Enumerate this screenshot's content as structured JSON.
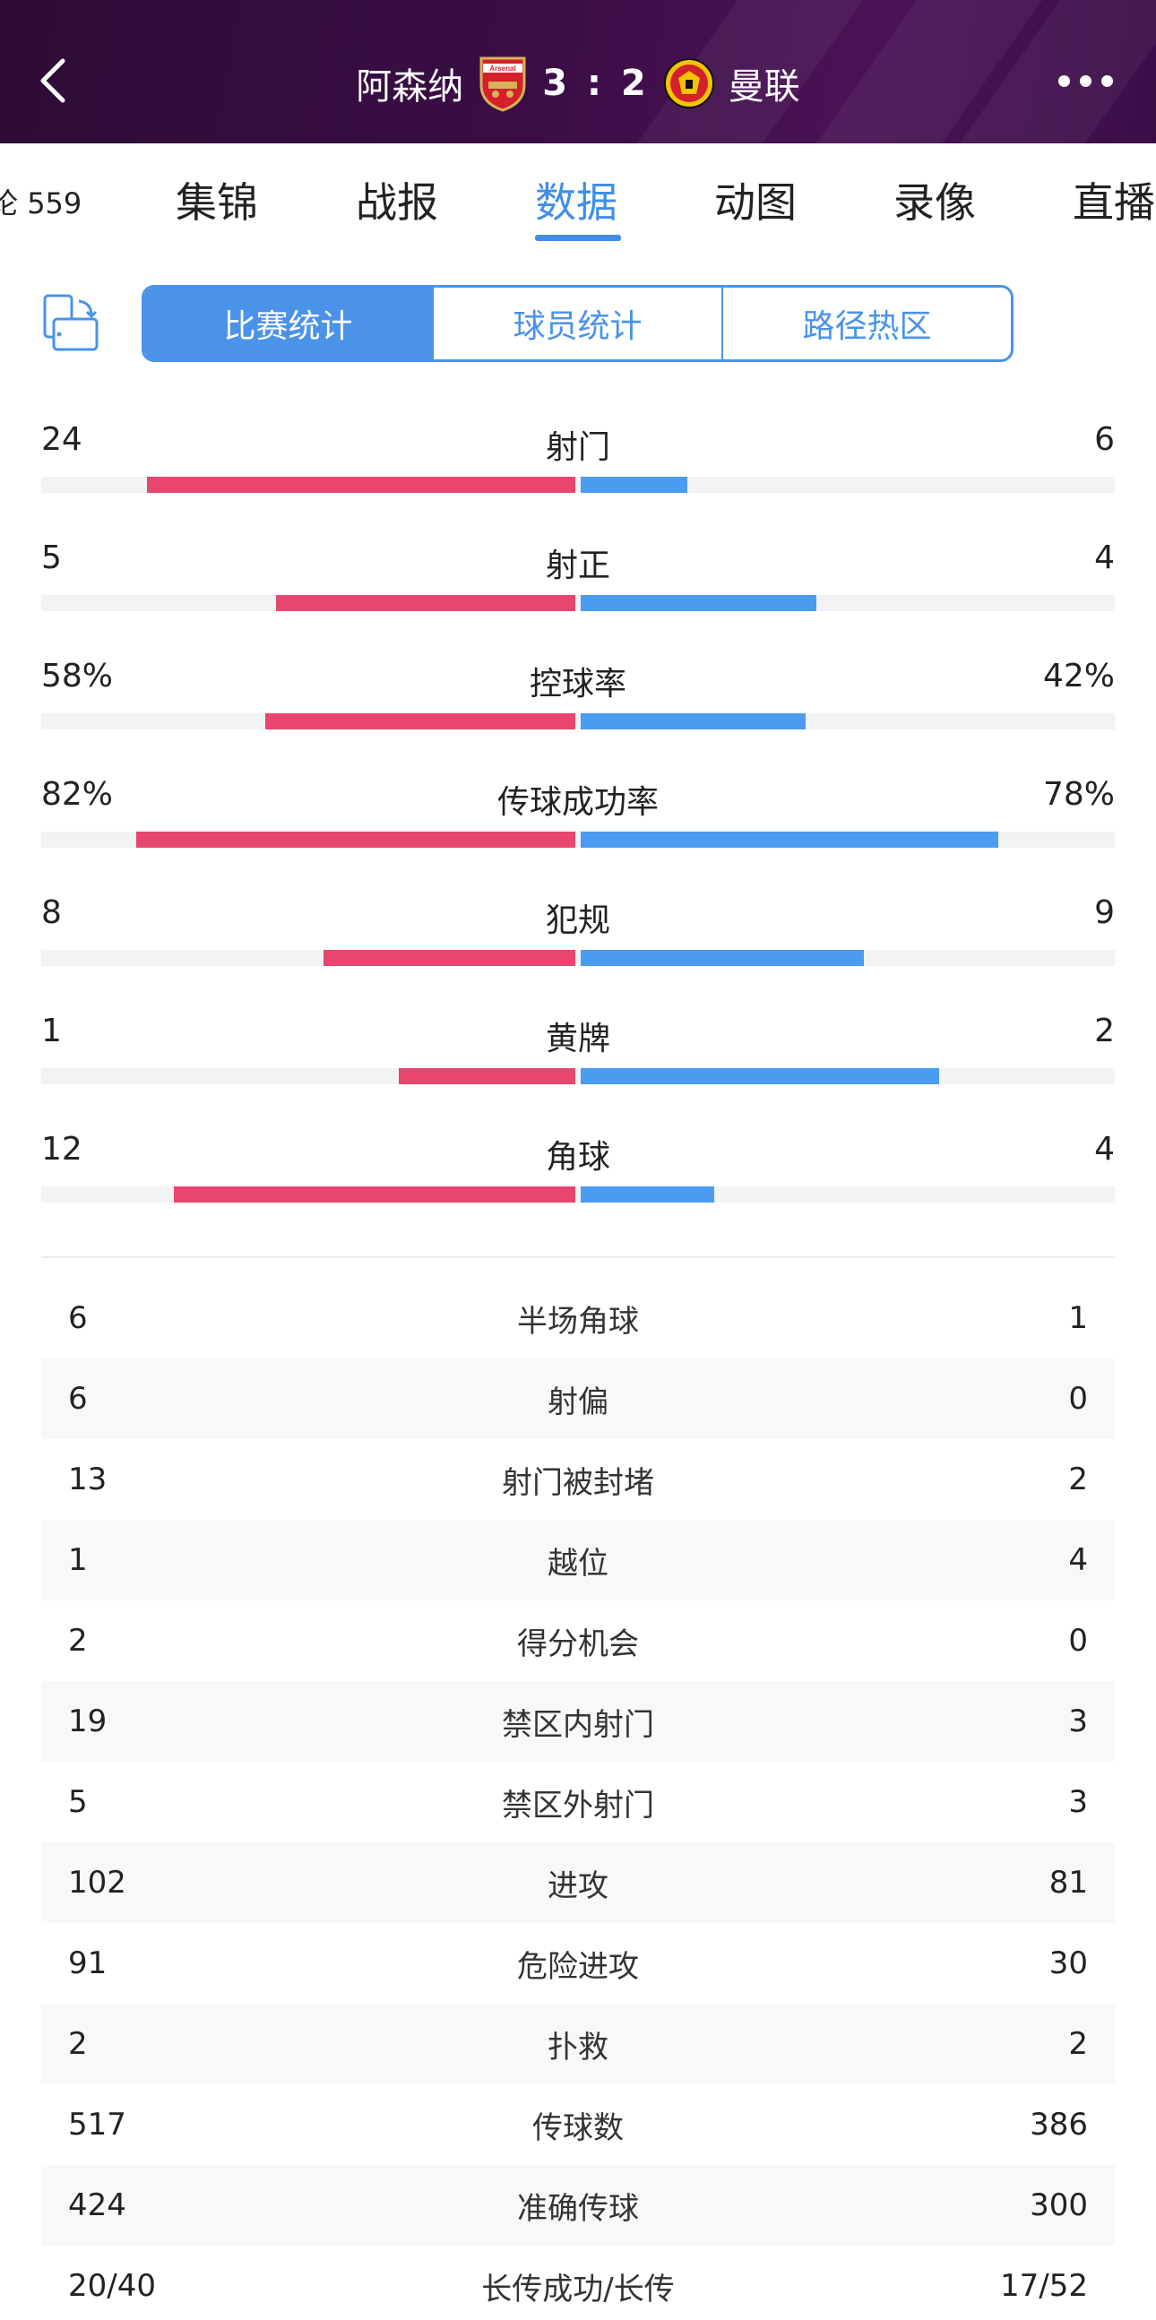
{
  "header": {
    "home_team": "阿森纳",
    "score": "3 : 2",
    "away_team": "曼联",
    "home_crest_icon": "arsenal-crest",
    "away_crest_icon": "manchester-united-crest",
    "home_crest_text": "Arsenal",
    "away_crest_text": "MANCHESTER UNITED"
  },
  "tabs": {
    "comments_label": "论",
    "comments_count": "559",
    "items": [
      "集锦",
      "战报",
      "数据",
      "动图",
      "录像",
      "直播"
    ],
    "active": "数据"
  },
  "segmented": {
    "items": [
      "比赛统计",
      "球员统计",
      "路径热区"
    ],
    "active": "比赛统计"
  },
  "colors": {
    "home": "#e8466f",
    "away": "#4a9cf0",
    "accent": "#3f8ee8",
    "header_bg": "#3a0d45"
  },
  "bar_stats": [
    {
      "label": "射门",
      "home": "24",
      "away": "6",
      "home_ratio": 0.8,
      "away_ratio": 0.2
    },
    {
      "label": "射正",
      "home": "5",
      "away": "4",
      "home_ratio": 0.56,
      "away_ratio": 0.44
    },
    {
      "label": "控球率",
      "home": "58%",
      "away": "42%",
      "home_ratio": 0.58,
      "away_ratio": 0.42
    },
    {
      "label": "传球成功率",
      "home": "82%",
      "away": "78%",
      "home_ratio": 0.82,
      "away_ratio": 0.78
    },
    {
      "label": "犯规",
      "home": "8",
      "away": "9",
      "home_ratio": 0.47,
      "away_ratio": 0.53
    },
    {
      "label": "黄牌",
      "home": "1",
      "away": "2",
      "home_ratio": 0.33,
      "away_ratio": 0.67
    },
    {
      "label": "角球",
      "home": "12",
      "away": "4",
      "home_ratio": 0.75,
      "away_ratio": 0.25
    }
  ],
  "table_stats": [
    {
      "label": "半场角球",
      "home": "6",
      "away": "1"
    },
    {
      "label": "射偏",
      "home": "6",
      "away": "0"
    },
    {
      "label": "射门被封堵",
      "home": "13",
      "away": "2"
    },
    {
      "label": "越位",
      "home": "1",
      "away": "4"
    },
    {
      "label": "得分机会",
      "home": "2",
      "away": "0"
    },
    {
      "label": "禁区内射门",
      "home": "19",
      "away": "3"
    },
    {
      "label": "禁区外射门",
      "home": "5",
      "away": "3"
    },
    {
      "label": "进攻",
      "home": "102",
      "away": "81"
    },
    {
      "label": "危险进攻",
      "home": "91",
      "away": "30"
    },
    {
      "label": "扑救",
      "home": "2",
      "away": "2"
    },
    {
      "label": "传球数",
      "home": "517",
      "away": "386"
    },
    {
      "label": "准确传球",
      "home": "424",
      "away": "300"
    },
    {
      "label": "长传成功/长传",
      "home": "20/40",
      "away": "17/52"
    }
  ]
}
